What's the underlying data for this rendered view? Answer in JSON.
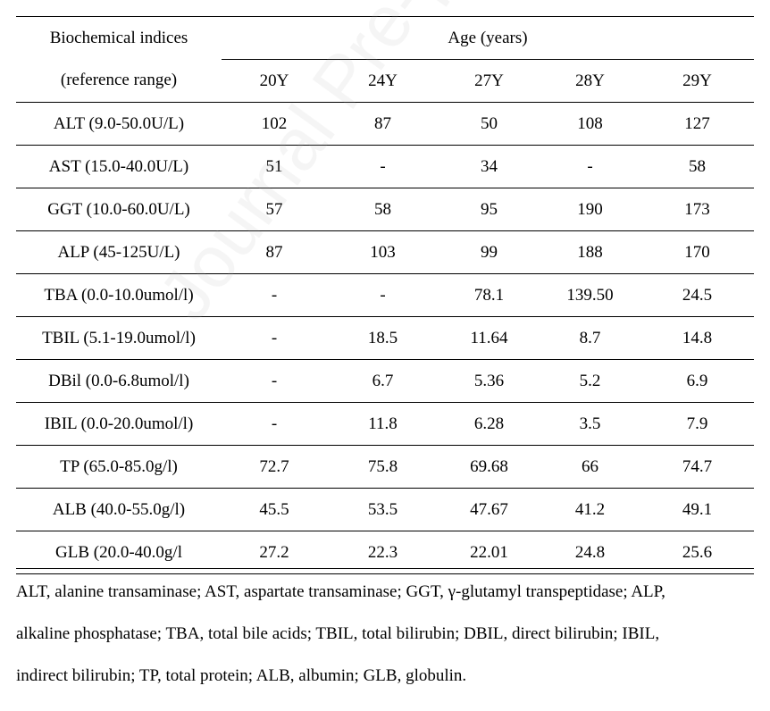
{
  "table": {
    "header": {
      "index_label_line1": "Biochemical indices",
      "index_label_line2": "(reference range)",
      "age_label": "Age (years)",
      "ages": [
        "20Y",
        "24Y",
        "27Y",
        "28Y",
        "29Y"
      ]
    },
    "rows": [
      {
        "label": "ALT (9.0-50.0U/L)",
        "values": [
          "102",
          "87",
          "50",
          "108",
          "127"
        ]
      },
      {
        "label": "AST (15.0-40.0U/L)",
        "values": [
          "51",
          "-",
          "34",
          "-",
          "58"
        ]
      },
      {
        "label": "GGT (10.0-60.0U/L)",
        "values": [
          "57",
          "58",
          "95",
          "190",
          "173"
        ]
      },
      {
        "label": "ALP (45-125U/L)",
        "values": [
          "87",
          "103",
          "99",
          "188",
          "170"
        ]
      },
      {
        "label": "TBA (0.0-10.0umol/l)",
        "values": [
          "-",
          "-",
          "78.1",
          "139.50",
          "24.5"
        ]
      },
      {
        "label": "TBIL (5.1-19.0umol/l)",
        "values": [
          "-",
          "18.5",
          "11.64",
          "8.7",
          "14.8"
        ]
      },
      {
        "label": "DBil (0.0-6.8umol/l)",
        "values": [
          "-",
          "6.7",
          "5.36",
          "5.2",
          "6.9"
        ]
      },
      {
        "label": "IBIL (0.0-20.0umol/l)",
        "values": [
          "-",
          "11.8",
          "6.28",
          "3.5",
          "7.9"
        ]
      },
      {
        "label": "TP (65.0-85.0g/l)",
        "values": [
          "72.7",
          "75.8",
          "69.68",
          "66",
          "74.7"
        ]
      },
      {
        "label": "ALB (40.0-55.0g/l)",
        "values": [
          "45.5",
          "53.5",
          "47.67",
          "41.2",
          "49.1"
        ]
      },
      {
        "label": "GLB (20.0-40.0g/l",
        "values": [
          "27.2",
          "22.3",
          "22.01",
          "24.8",
          "25.6"
        ]
      }
    ]
  },
  "footnote": {
    "lines": [
      "ALT, alanine transaminase; AST, aspartate transaminase; GGT, γ-glutamyl transpeptidase; ALP,",
      "alkaline phosphatase; TBA, total bile acids; TBIL, total bilirubin; DBIL, direct bilirubin; IBIL,",
      "indirect bilirubin; TP, total protein; ALB, albumin; GLB, globulin."
    ]
  },
  "watermark": "Journal Pre-proof"
}
